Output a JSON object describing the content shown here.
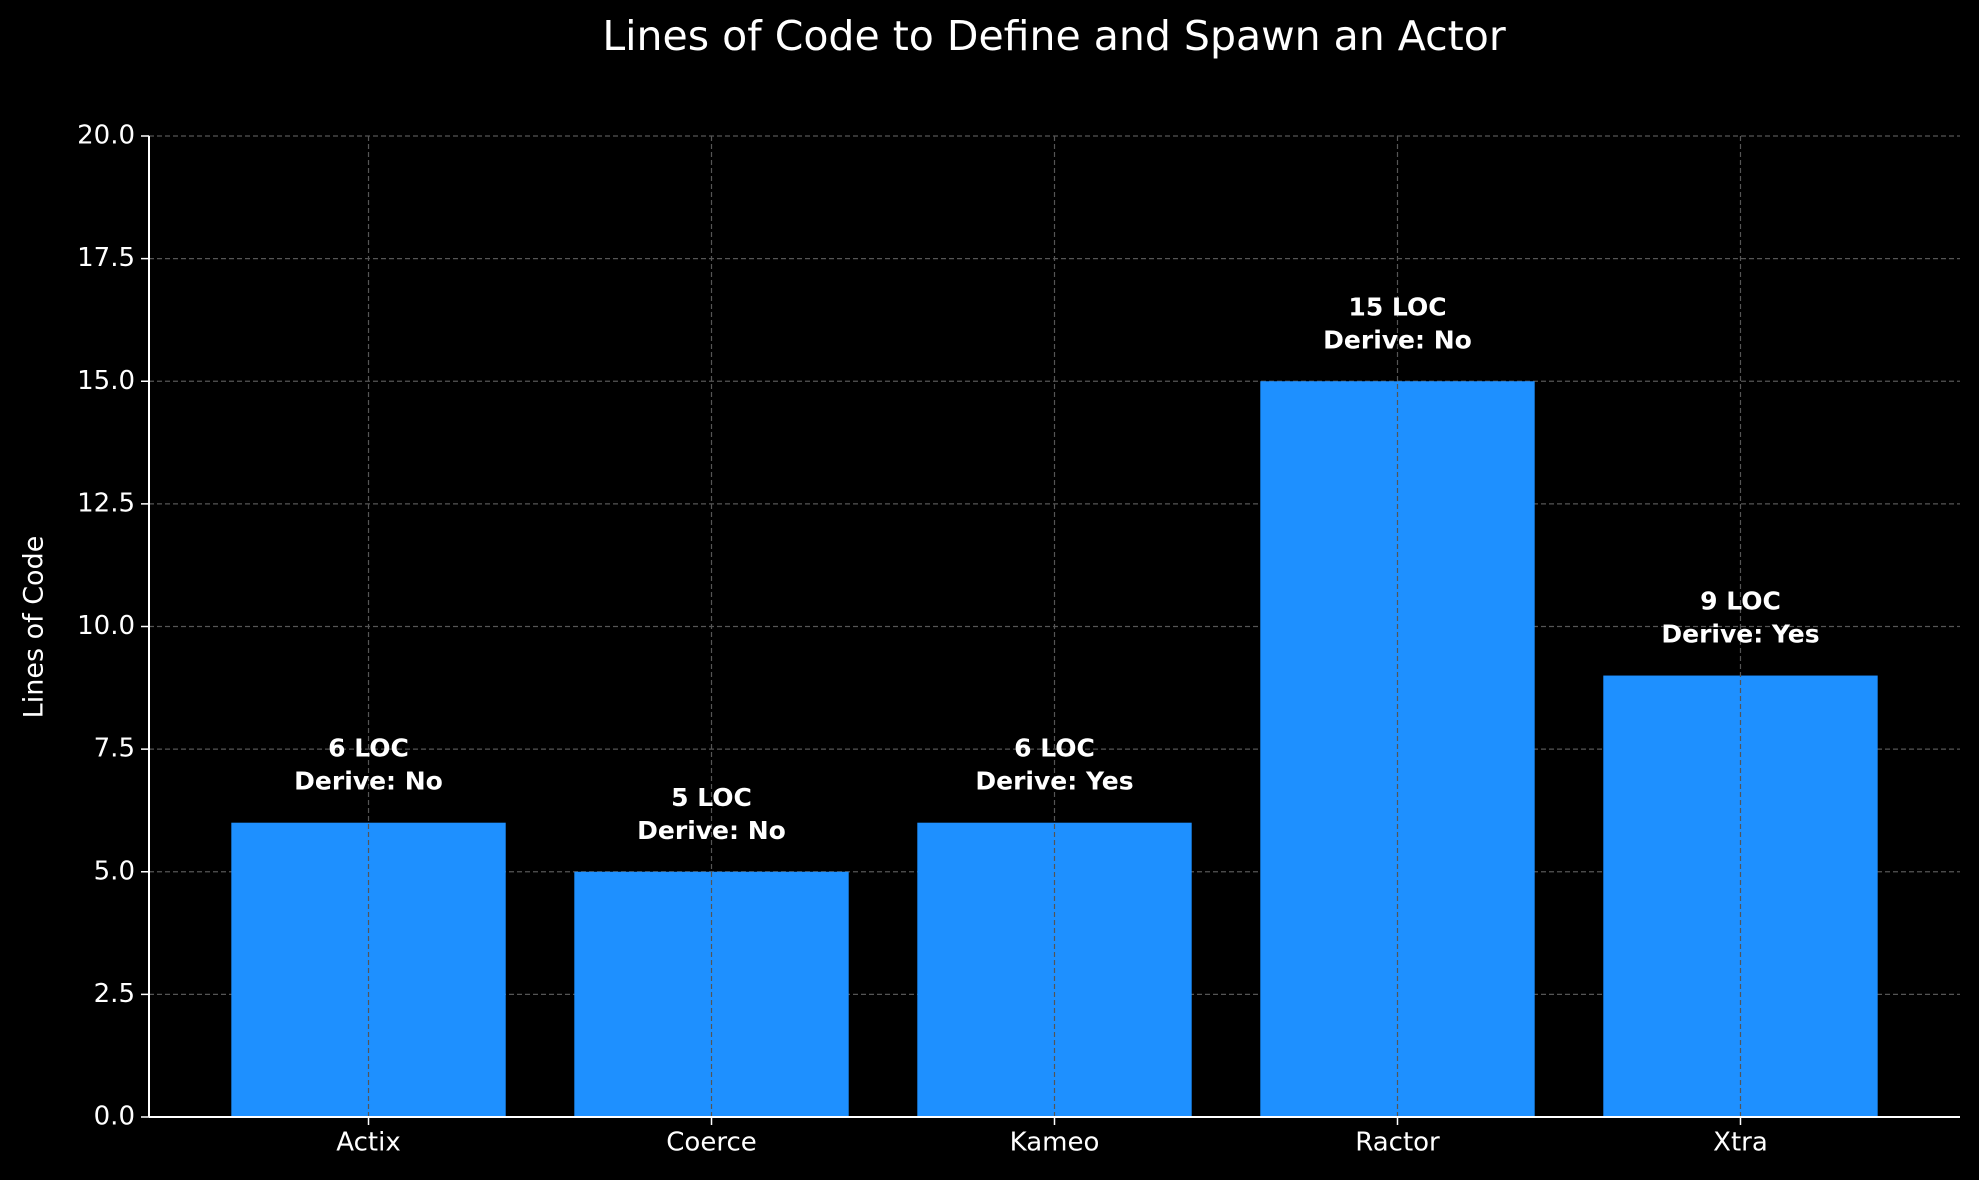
{
  "chart_data": {
    "type": "bar",
    "title": "Lines of Code to Define and Spawn an Actor",
    "ylabel": "Lines of Code",
    "categories": [
      "Actix",
      "Coerce",
      "Kameo",
      "Ractor",
      "Xtra"
    ],
    "values": [
      6,
      5,
      6,
      15,
      9
    ],
    "value_labels": [
      "6 LOC",
      "5 LOC",
      "6 LOC",
      "15 LOC",
      "9 LOC"
    ],
    "derive_labels": [
      "Derive: No",
      "Derive: No",
      "Derive: Yes",
      "Derive: No",
      "Derive: Yes"
    ],
    "color": "#1e90ff",
    "ylim": [
      0,
      20
    ],
    "yticks": [
      {
        "value": 0,
        "label": "0.0"
      },
      2.5,
      {
        "value": 5,
        "label": "5.0"
      },
      7.5,
      {
        "value": 10,
        "label": "10.0"
      },
      12.5,
      {
        "value": 15,
        "label": "15.0"
      },
      17.5,
      {
        "value": 20,
        "label": "20.0"
      }
    ],
    "grid": true
  }
}
